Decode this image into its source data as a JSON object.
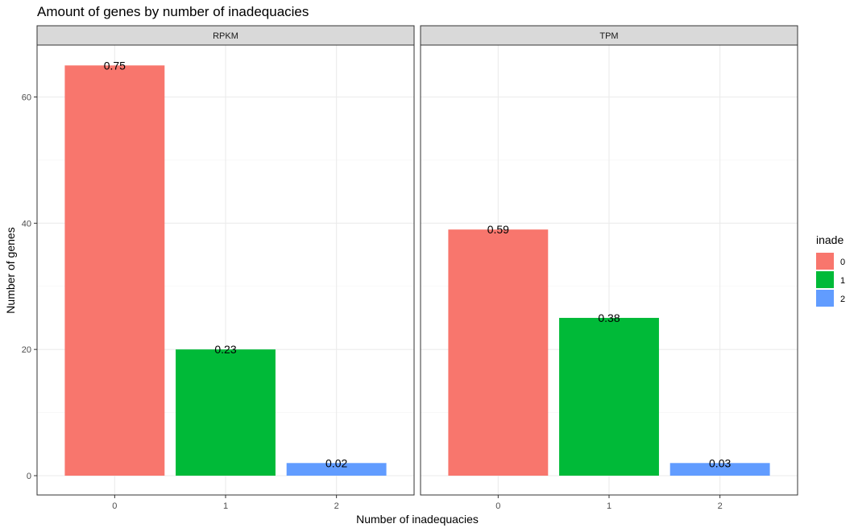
{
  "chart_data": {
    "type": "bar",
    "title": "Amount of genes by number of inadequacies",
    "xlabel": "Number of inadequacies",
    "ylabel": "Number of genes",
    "ylim": [
      0,
      68
    ],
    "y_ticks": [
      0,
      20,
      40,
      60
    ],
    "categories": [
      "0",
      "1",
      "2"
    ],
    "grid": true,
    "legend": {
      "title": "inade",
      "position": "right",
      "entries": [
        {
          "label": "0",
          "color": "#F8766D"
        },
        {
          "label": "1",
          "color": "#00BA38"
        },
        {
          "label": "2",
          "color": "#619CFF"
        }
      ]
    },
    "panels": [
      {
        "strip": "RPKM",
        "values": [
          65,
          20,
          2
        ],
        "labels": [
          "0.75",
          "0.23",
          "0.02"
        ]
      },
      {
        "strip": "TPM",
        "values": [
          39,
          25,
          2
        ],
        "labels": [
          "0.59",
          "0.38",
          "0.03"
        ]
      }
    ]
  }
}
